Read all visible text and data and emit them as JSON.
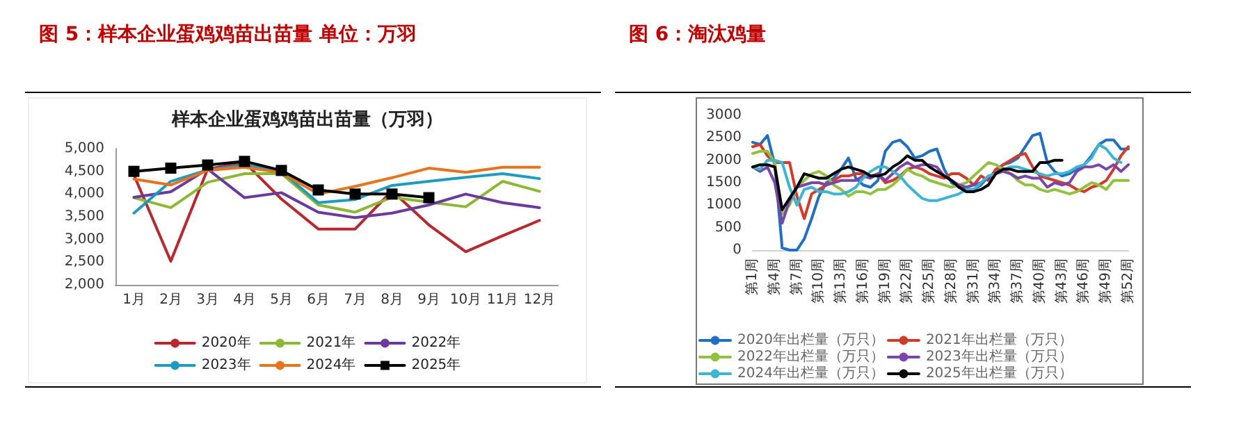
{
  "chart_data": [
    {
      "type": "line",
      "title": "图 5：样本企业蛋鸡鸡苗出苗量 单位：万羽",
      "subtitle": "样本企业蛋鸡鸡苗出苗量（万羽）",
      "categories": [
        "1月",
        "2月",
        "3月",
        "4月",
        "5月",
        "6月",
        "7月",
        "8月",
        "9月",
        "10月",
        "11月",
        "12月"
      ],
      "series": [
        {
          "name": "2020年",
          "color": "#b8282e",
          "values": [
            4420,
            2520,
            4550,
            4700,
            3890,
            3230,
            3230,
            4070,
            3320,
            2730,
            3080,
            3420
          ]
        },
        {
          "name": "2021年",
          "color": "#8db833",
          "values": [
            3920,
            3700,
            4260,
            4450,
            4450,
            3760,
            3600,
            3930,
            3820,
            3720,
            4280,
            4060
          ]
        },
        {
          "name": "2022年",
          "color": "#6b3a9e",
          "values": [
            3930,
            4050,
            4550,
            3920,
            4030,
            3600,
            3480,
            3580,
            3760,
            4000,
            3810,
            3700
          ]
        },
        {
          "name": "2023年",
          "color": "#1f9bc2",
          "values": [
            3580,
            4280,
            4530,
            4640,
            4500,
            3810,
            3880,
            4190,
            4280,
            4370,
            4450,
            4340
          ]
        },
        {
          "name": "2024年",
          "color": "#e8731a",
          "values": [
            4330,
            4200,
            4520,
            4590,
            4470,
            4000,
            4170,
            4360,
            4570,
            4480,
            4590,
            4590
          ]
        },
        {
          "name": "2025年",
          "color": "#000000",
          "marker": "square",
          "values": [
            4500,
            4570,
            4640,
            4720,
            4520,
            4090,
            4000,
            4000,
            3920,
            null,
            null,
            null
          ]
        }
      ],
      "ylim": [
        2000,
        5000
      ],
      "yticks": [
        {
          "value": 2000,
          "label": "2,000"
        },
        {
          "value": 2500,
          "label": "2,500"
        },
        {
          "value": 3000,
          "label": "3,000"
        },
        {
          "value": 3500,
          "label": "3,500"
        },
        {
          "value": 4000,
          "label": "4,000"
        },
        {
          "value": 4500,
          "label": "4,500"
        },
        {
          "value": 5000,
          "label": "5,000"
        }
      ],
      "marker": "none",
      "legend": "bottom"
    },
    {
      "type": "line",
      "title": "图 6：淘汰鸡量",
      "categories": [
        "第1周",
        null,
        null,
        "第4周",
        null,
        null,
        "第7周",
        null,
        null,
        "第10周",
        null,
        null,
        "第13周",
        null,
        null,
        "第16周",
        null,
        null,
        "第19周",
        null,
        null,
        "第22周",
        null,
        null,
        "第25周",
        null,
        null,
        "第28周",
        null,
        null,
        "第31周",
        null,
        null,
        "第34周",
        null,
        null,
        "第37周",
        null,
        null,
        "第40周",
        null,
        null,
        "第43周",
        null,
        null,
        "第46周",
        null,
        null,
        "第49周",
        null,
        null,
        "第52周"
      ],
      "series": [
        {
          "name": "2020年出栏量（万只）",
          "color": "#1f6fc5",
          "values": [
            2400,
            2350,
            2550,
            1900,
            50,
            0,
            0,
            250,
            700,
            1200,
            1500,
            1600,
            1800,
            2050,
            1600,
            1450,
            1400,
            1550,
            2200,
            2400,
            2450,
            2300,
            2050,
            2100,
            2200,
            2250,
            1800,
            1500,
            1400,
            1350,
            1350,
            1450,
            1650,
            1700,
            1900,
            1950,
            2050,
            2300,
            2550,
            2600,
            1950,
            1750,
            1650,
            1700,
            1800,
            1900,
            2100,
            2350,
            2450,
            2450,
            2250,
            2250
          ]
        },
        {
          "name": "2021年出栏量（万只）",
          "color": "#d43a2a",
          "values": [
            2300,
            2350,
            2100,
            1950,
            1950,
            1950,
            1200,
            700,
            1250,
            1350,
            1450,
            1550,
            1650,
            1650,
            1700,
            1700,
            1650,
            1700,
            1500,
            1550,
            1650,
            1800,
            1850,
            1800,
            1700,
            1650,
            1600,
            1700,
            1700,
            1600,
            1450,
            1650,
            1550,
            1800,
            1900,
            2000,
            2100,
            2150,
            1850,
            1650,
            1600,
            1550,
            1500,
            1450,
            1350,
            1300,
            1400,
            1450,
            1550,
            1800,
            2100,
            2300
          ]
        },
        {
          "name": "2022年出栏量（万只）",
          "color": "#92c13e",
          "values": [
            2150,
            2200,
            2200,
            1950,
            800,
            1000,
            1400,
            1550,
            1700,
            1750,
            1650,
            1450,
            1350,
            1200,
            1300,
            1300,
            1250,
            1350,
            1350,
            1450,
            1600,
            1800,
            1700,
            1650,
            1550,
            1500,
            1450,
            1400,
            1450,
            1500,
            1650,
            1800,
            1950,
            1900,
            1800,
            1700,
            1550,
            1450,
            1450,
            1350,
            1300,
            1350,
            1300,
            1250,
            1300,
            1400,
            1500,
            1450,
            1350,
            1550,
            1550,
            1550
          ]
        },
        {
          "name": "2023年出栏量（万只）",
          "color": "#7a46a8",
          "values": [
            1850,
            1750,
            1850,
            1500,
            600,
            1100,
            1400,
            1450,
            1500,
            1500,
            1450,
            1500,
            1550,
            1550,
            1550,
            1650,
            1600,
            1700,
            1550,
            1700,
            1850,
            1950,
            1850,
            1900,
            1900,
            1850,
            1650,
            1550,
            1450,
            1400,
            1450,
            1500,
            1600,
            1700,
            1750,
            1700,
            1600,
            1650,
            1600,
            1600,
            1400,
            1500,
            1450,
            1500,
            1750,
            1850,
            1850,
            1900,
            1800,
            1900,
            1750,
            1900
          ]
        },
        {
          "name": "2024年出栏量（万只）",
          "color": "#3cb4d4",
          "values": [
            1850,
            1800,
            2000,
            2000,
            1950,
            1400,
            1000,
            1350,
            1400,
            1300,
            1300,
            1250,
            1250,
            1300,
            1400,
            1600,
            1750,
            1850,
            1850,
            1750,
            1650,
            1450,
            1300,
            1150,
            1100,
            1100,
            1150,
            1200,
            1250,
            1350,
            1350,
            1500,
            1650,
            1700,
            1800,
            1850,
            1850,
            1800,
            1750,
            1700,
            1650,
            1700,
            1700,
            1750,
            1850,
            1900,
            2050,
            2350,
            2250,
            2050,
            1950,
            null
          ]
        },
        {
          "name": "2025年出栏量（万只）",
          "color": "#000000",
          "values": [
            1850,
            1900,
            1900,
            1850,
            900,
            1150,
            1400,
            1700,
            1650,
            1600,
            1600,
            1700,
            1800,
            1850,
            1800,
            1750,
            1650,
            1650,
            1700,
            1850,
            1950,
            2100,
            2000,
            2000,
            1850,
            1750,
            1650,
            1550,
            1400,
            1300,
            1300,
            1350,
            1450,
            1700,
            1800,
            1800,
            1750,
            1750,
            1750,
            1950,
            1950,
            2000,
            2000,
            null,
            null,
            null,
            null,
            null,
            null,
            null,
            null,
            null
          ]
        }
      ],
      "ylim": [
        0,
        3000
      ],
      "yticks": [
        0,
        500,
        1000,
        1500,
        2000,
        2500,
        3000
      ],
      "marker": "none",
      "legend": "bottom"
    }
  ]
}
